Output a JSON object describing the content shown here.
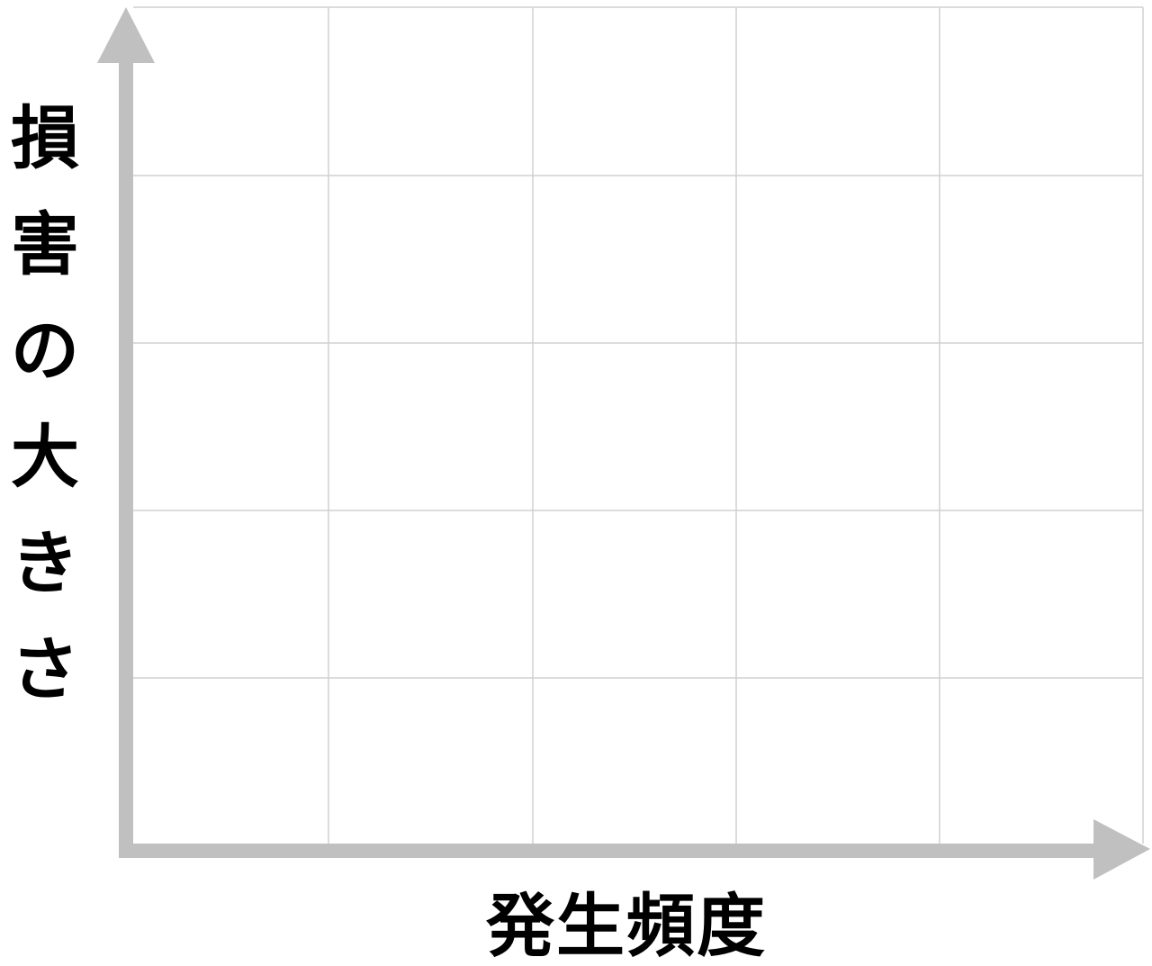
{
  "axes": {
    "y_label_chars": [
      "損",
      "害",
      "の",
      "大",
      "き",
      "さ"
    ],
    "x_label": "発生頻度"
  },
  "grid": {
    "columns": 5,
    "rows": 5,
    "line_color": "#d0d0d0",
    "axis_color": "#c0c0c0"
  }
}
